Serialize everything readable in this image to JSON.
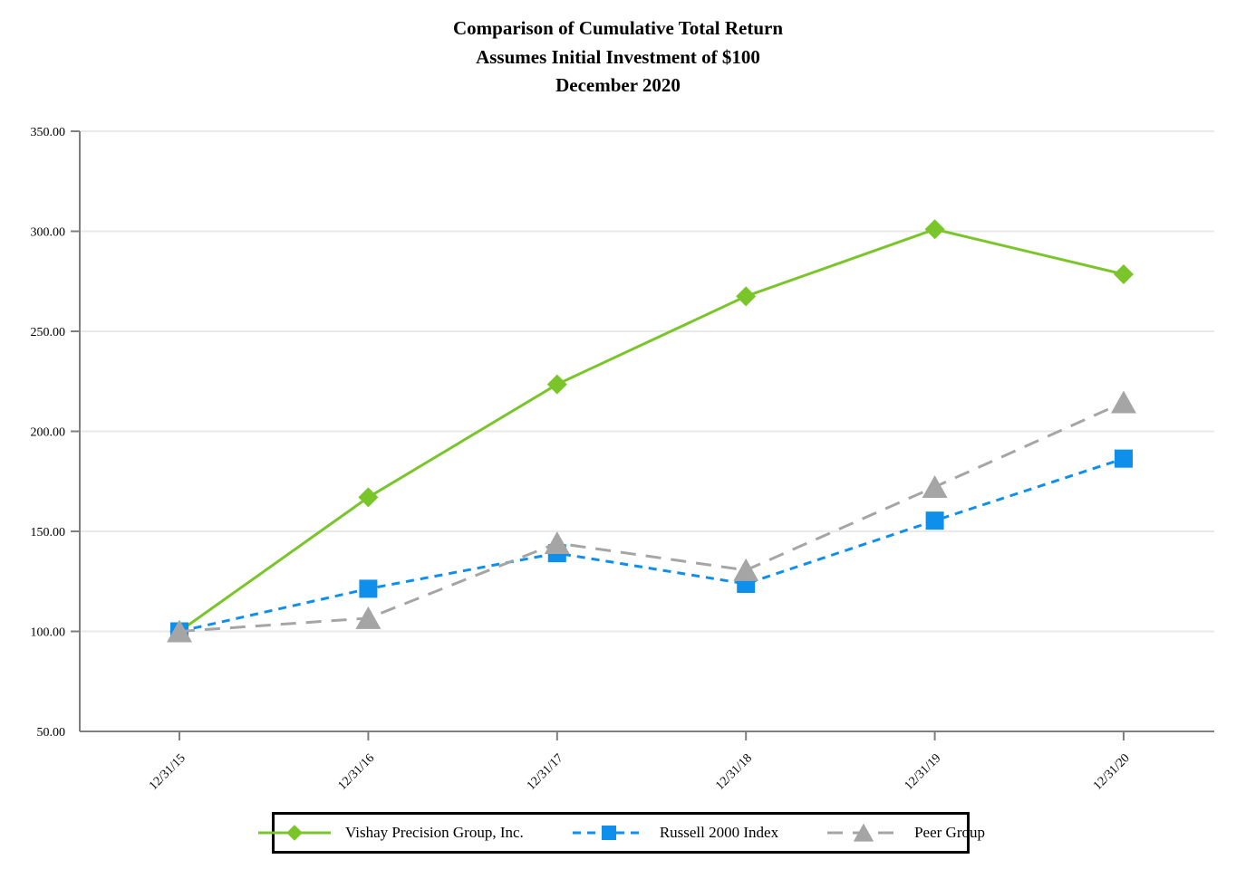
{
  "chart_data": {
    "type": "line",
    "title": "Comparison of Cumulative Total Return",
    "subtitle": "Assumes Initial Investment of $100",
    "period_label": "December 2020",
    "categories": [
      "12/31/15",
      "12/31/16",
      "12/31/17",
      "12/31/18",
      "12/31/19",
      "12/31/20"
    ],
    "series": [
      {
        "name": "Vishay Precision Group, Inc.",
        "values": [
          100.0,
          167.0,
          223.5,
          267.5,
          301.0,
          278.5
        ],
        "color": "#7AC52A",
        "marker": "diamond",
        "line_style": "solid"
      },
      {
        "name": "Russell 2000 Index",
        "values": [
          100.0,
          121.31,
          139.08,
          123.76,
          155.35,
          186.36
        ],
        "color": "#0E8FEB",
        "marker": "square",
        "line_style": "dash"
      },
      {
        "name": "Peer Group",
        "values": [
          100.0,
          106.6,
          144.1,
          130.6,
          172.2,
          214.5
        ],
        "color": "#A5A5A5",
        "marker": "triangle",
        "line_style": "long-dash"
      }
    ],
    "ylim": [
      50,
      350
    ],
    "ytick_step": 50,
    "ytick_labels": [
      "50.00",
      "100.00",
      "150.00",
      "200.00",
      "250.00",
      "300.00",
      "350.00"
    ],
    "grid": "horizontal",
    "legend_position": "bottom",
    "axis_color": "#7F7F7F",
    "grid_color": "#E9E9E9",
    "text_color": "#000000"
  }
}
